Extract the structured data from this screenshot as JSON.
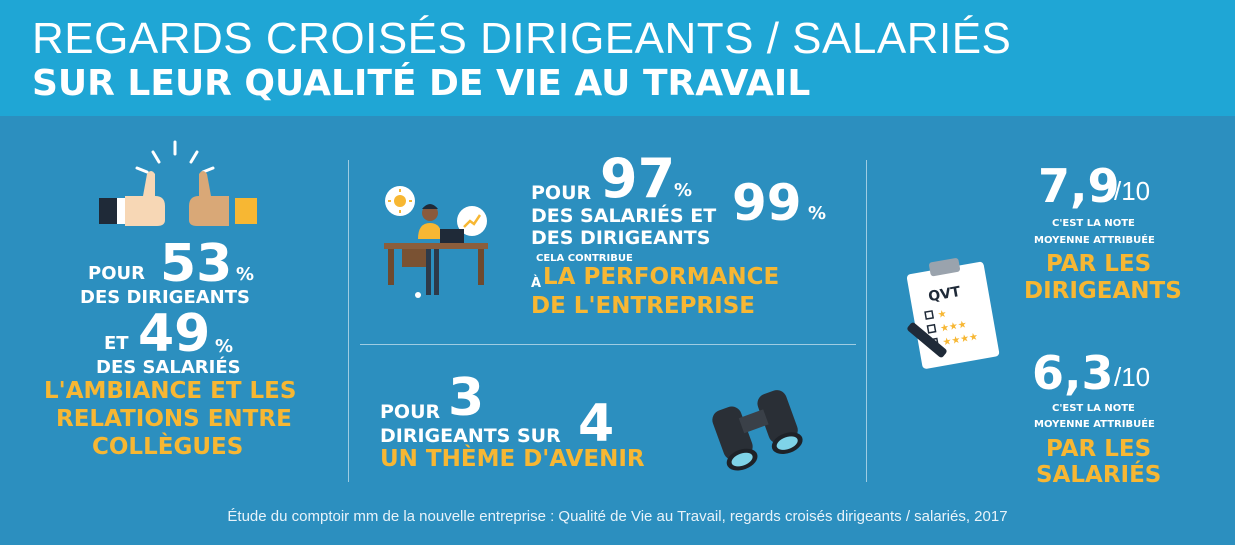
{
  "header": {
    "title_line1": "REGARDS CROISÉS DIRIGEANTS / SALARIÉS",
    "title_line2": "SUR LEUR QUALITÉ DE VIE AU TRAVAIL"
  },
  "left": {
    "pour": "POUR",
    "pct1": "53",
    "pct_sign": "%",
    "label1": "DES DIRIGEANTS",
    "et": "ET",
    "pct2": "49",
    "label2": "DES SALARIÉS",
    "theme_line1": "L'AMBIANCE ET LES",
    "theme_line2": "RELATIONS ENTRE",
    "theme_line3": "COLLÈGUES"
  },
  "middle_top": {
    "pour": "POUR",
    "pct1": "97",
    "pct_sign": "%",
    "line1": "DES SALARIÉS ET",
    "pct2": "99",
    "line2": "DES DIRIGEANTS",
    "contribue": "CELA CONTRIBUE",
    "a": "À",
    "perf_line1": "LA PERFORMANCE",
    "perf_line2": "DE L'ENTREPRISE"
  },
  "middle_bottom": {
    "pour": "POUR",
    "num1": "3",
    "line": "DIRIGEANTS SUR",
    "num2": "4",
    "theme": "UN THÈME D'AVENIR"
  },
  "right": {
    "clipboard_label": "QVT",
    "score1": "7,9",
    "score_den": "/10",
    "note_line1": "C'EST LA NOTE",
    "note_line2": "MOYENNE ATTRIBUÉE",
    "by1_line1": "PAR LES",
    "by1_line2": "DIRIGEANTS",
    "score2": "6,3",
    "by2_line1": "PAR LES",
    "by2_line2": "SALARIÉS"
  },
  "footer": {
    "source": "Étude du comptoir mm de la nouvelle entreprise : Qualité de Vie au Travail, regards croisés dirigeants / salariés, 2017"
  },
  "colors": {
    "header_bg": "#1FA6D5",
    "main_bg": "#2C8FBF",
    "accent_yellow": "#F7B733",
    "text": "#FFFFFF"
  },
  "icons": [
    "thumbs-up-icon",
    "person-at-desk-icon",
    "binoculars-icon",
    "clipboard-icon",
    "pen-icon",
    "sun-icon",
    "chart-icon"
  ]
}
